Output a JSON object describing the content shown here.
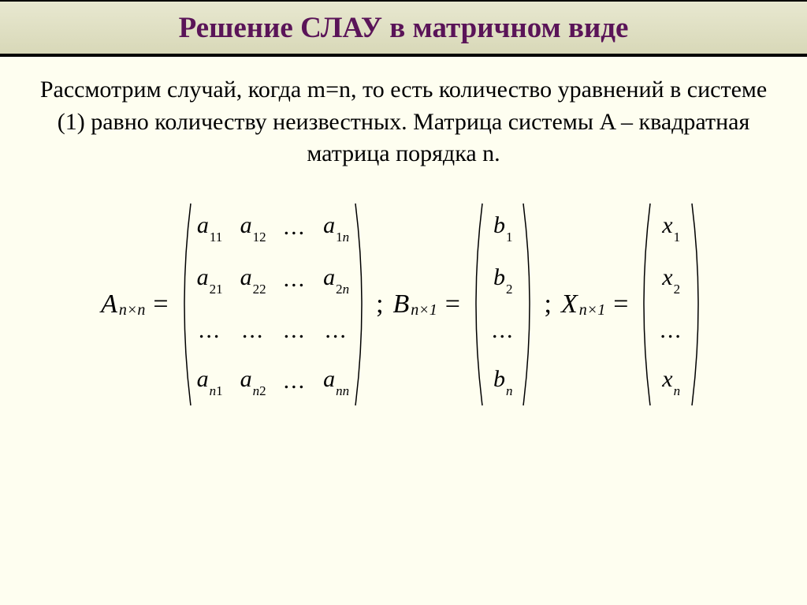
{
  "title": "Решение СЛАУ в матричном виде",
  "paragraph": "Рассмотрим случай, когда m=n, то есть количество уравнений в системе (1) равно количеству неизвестных. Матрица системы A – квадратная матрица порядка n.",
  "colors": {
    "title_text": "#5a1458",
    "title_bg_top": "#e8e8d0",
    "title_bg_bottom": "#d8d8b8",
    "page_bg": "#fefef0",
    "rule": "#000000",
    "text": "#000000"
  },
  "typography": {
    "title_fontsize": 37,
    "title_weight": "bold",
    "body_fontsize": 30,
    "math_fontsize": 34,
    "cell_fontsize": 30,
    "sub_fontsize": 17,
    "font_family": "Times New Roman"
  },
  "matrices": {
    "A": {
      "lhs_var": "A",
      "lhs_sub": "n×n",
      "rows": 4,
      "cols": 4,
      "paren_height": 260,
      "cells": [
        {
          "base": "a",
          "sub": "11"
        },
        {
          "base": "a",
          "sub": "12"
        },
        {
          "dots": "..."
        },
        {
          "base": "a",
          "sub": "1",
          "subit": "n"
        },
        {
          "base": "a",
          "sub": "21"
        },
        {
          "base": "a",
          "sub": "22"
        },
        {
          "dots": "..."
        },
        {
          "base": "a",
          "sub": "2",
          "subit": "n"
        },
        {
          "dots": "..."
        },
        {
          "dots": "..."
        },
        {
          "dots": "..."
        },
        {
          "dots": "..."
        },
        {
          "base": "a",
          "subit": "n",
          "sub2": "1"
        },
        {
          "base": "a",
          "subit": "n",
          "sub2": "2"
        },
        {
          "dots": "..."
        },
        {
          "base": "a",
          "subit": "nn"
        }
      ]
    },
    "B": {
      "lhs_var": "B",
      "lhs_sub": "n×1",
      "rows": 4,
      "cols": 1,
      "paren_height": 260,
      "cells": [
        {
          "base": "b",
          "sub": "1"
        },
        {
          "base": "b",
          "sub": "2"
        },
        {
          "dots": "..."
        },
        {
          "base": "b",
          "subit": "n"
        }
      ]
    },
    "X": {
      "lhs_var": "X",
      "lhs_sub": "n×1",
      "rows": 4,
      "cols": 1,
      "paren_height": 260,
      "cells": [
        {
          "base": "x",
          "sub": "1"
        },
        {
          "base": "x",
          "sub": "2"
        },
        {
          "dots": "..."
        },
        {
          "base": "x",
          "subit": "n"
        }
      ]
    }
  },
  "separators": {
    "semicolon": ";",
    "equals": "="
  }
}
